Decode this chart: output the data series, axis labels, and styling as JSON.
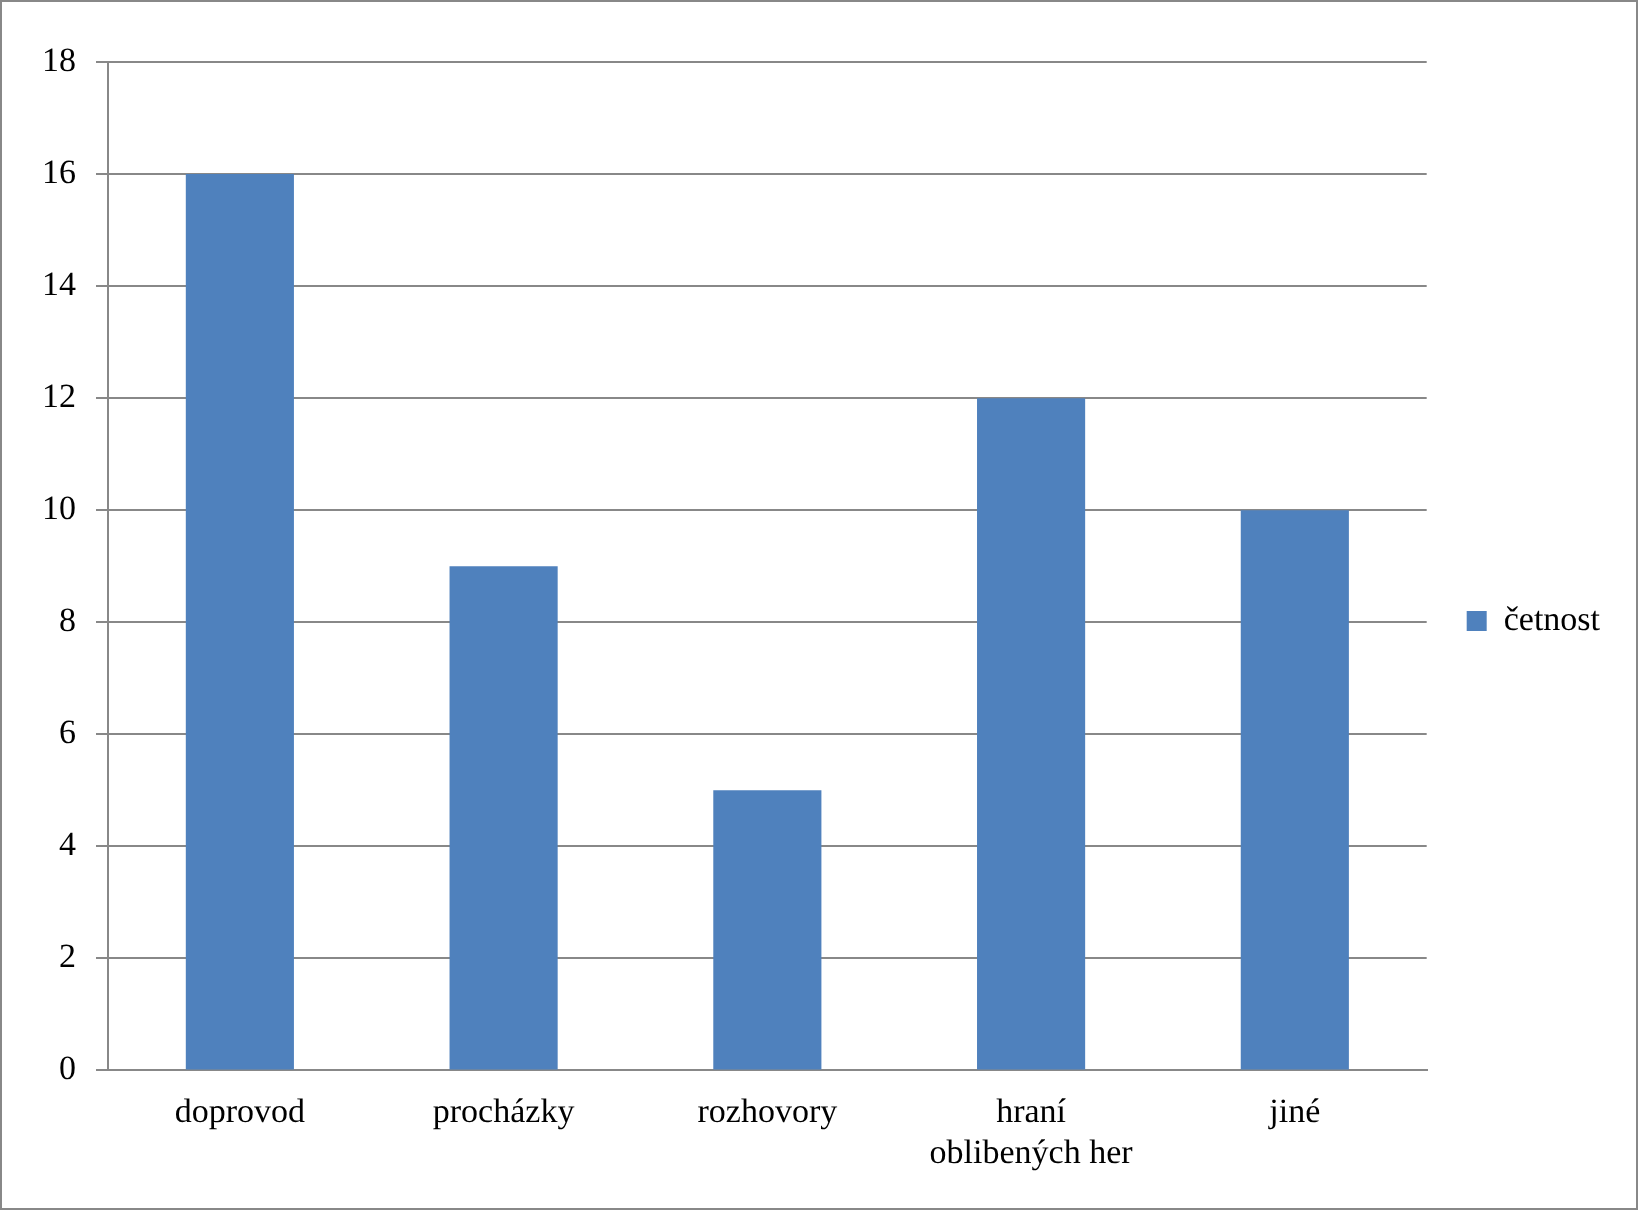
{
  "chart_data": {
    "type": "bar",
    "categories": [
      "doprovod",
      "procházky",
      "rozhovory",
      "hraní oblibených her",
      "jiné"
    ],
    "series": [
      {
        "name": "četnost",
        "color": "#4f81bd",
        "values": [
          16,
          9,
          5,
          12,
          10
        ]
      }
    ],
    "ylim": [
      0,
      18
    ],
    "yticks": [
      0,
      2,
      4,
      6,
      8,
      10,
      12,
      14,
      16,
      18
    ],
    "grid": "y",
    "legend": "right"
  }
}
